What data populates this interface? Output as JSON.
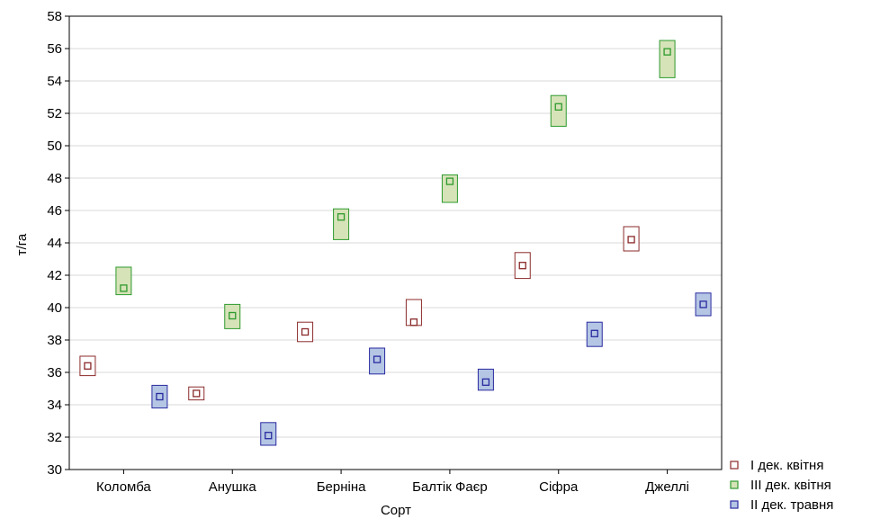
{
  "chart_data": {
    "type": "scatter",
    "title": "",
    "xlabel": "Сорт",
    "ylabel": "т/га",
    "ylim": [
      30,
      58
    ],
    "yticks": [
      30,
      32,
      34,
      36,
      38,
      40,
      42,
      44,
      46,
      48,
      50,
      52,
      54,
      56,
      58
    ],
    "grid": true,
    "legend_position": "bottom-right",
    "categories": [
      "Коломба",
      "Анушка",
      "Берніна",
      "Балтік Фаєр",
      "Сіфра",
      "Джеллі"
    ],
    "series": [
      {
        "name": "I дек. квітня",
        "stroke": "#8b2a2a",
        "fill": "#ffffff",
        "values": [
          36.4,
          34.7,
          38.5,
          39.1,
          42.6,
          44.2
        ],
        "lower": [
          35.8,
          34.3,
          37.9,
          38.9,
          41.8,
          43.5
        ],
        "upper": [
          37.0,
          35.1,
          39.1,
          40.5,
          43.4,
          45.0
        ]
      },
      {
        "name": "III дек. квітня",
        "stroke": "#2e9a2e",
        "fill": "#d6e3b8",
        "values": [
          41.2,
          39.5,
          45.6,
          47.8,
          52.4,
          55.8
        ],
        "lower": [
          40.8,
          38.7,
          44.2,
          46.5,
          51.2,
          54.2
        ],
        "upper": [
          42.5,
          40.2,
          46.1,
          48.2,
          53.1,
          56.5
        ]
      },
      {
        "name": "II дек. травня",
        "stroke": "#2a2aa0",
        "fill": "#b4c6e4",
        "values": [
          34.5,
          32.1,
          36.8,
          35.4,
          38.4,
          40.2
        ],
        "lower": [
          33.8,
          31.5,
          35.9,
          34.9,
          37.6,
          39.5
        ],
        "upper": [
          35.2,
          32.9,
          37.5,
          36.2,
          39.1,
          40.9
        ]
      }
    ]
  }
}
